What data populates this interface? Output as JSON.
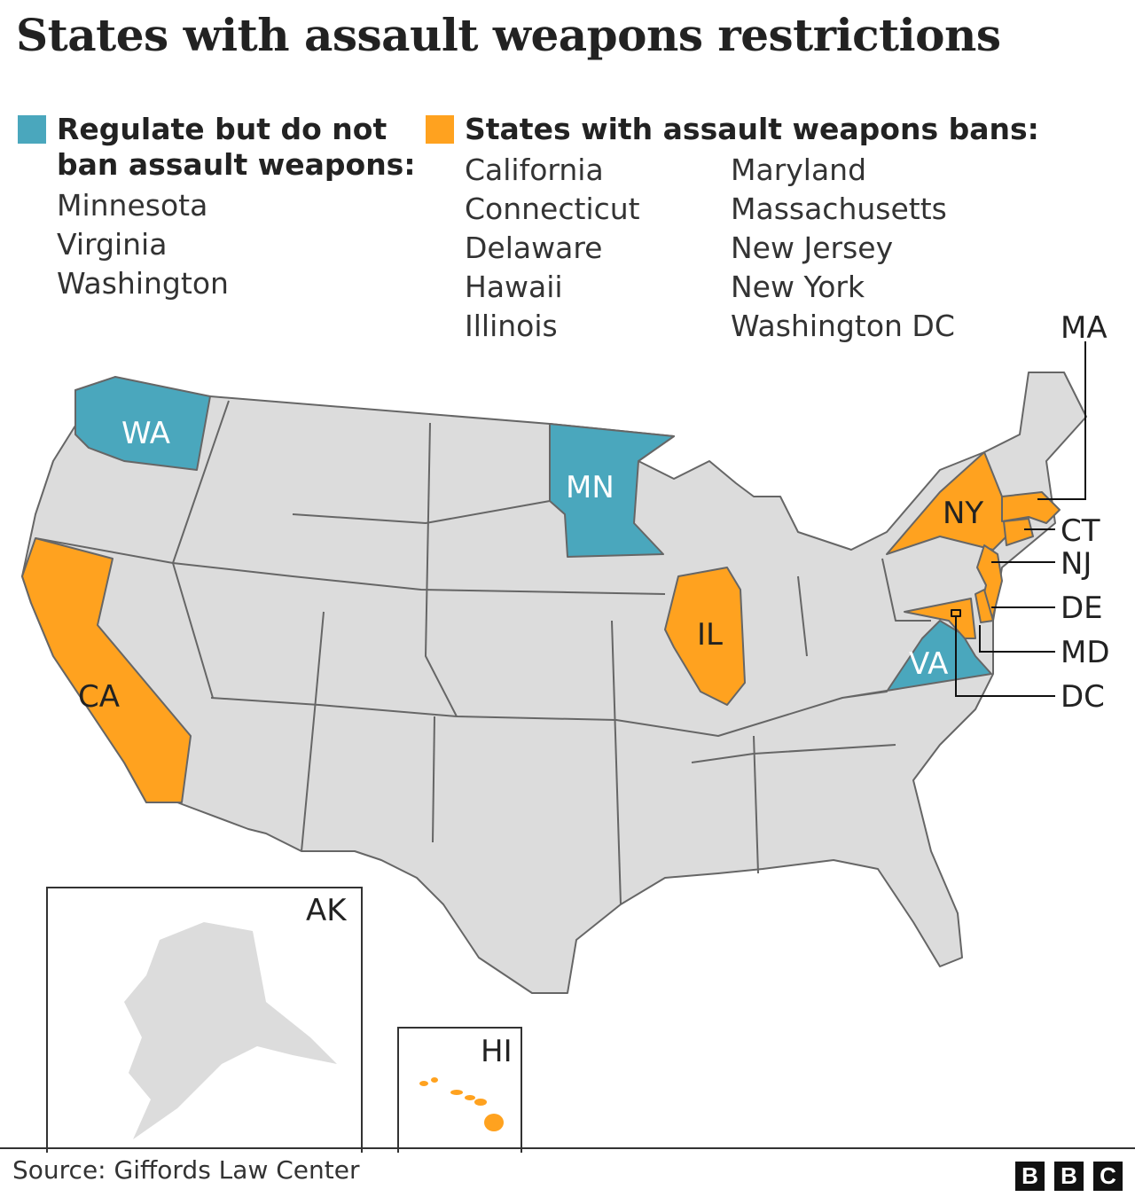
{
  "title": "States with assault weapons restrictions",
  "colors": {
    "regulate": "#4aa7bd",
    "ban": "#ffa21f",
    "other": "#dcdcdc",
    "border": "#666666"
  },
  "legend": {
    "regulate": {
      "label": "Regulate but do not ban assault weapons:",
      "label_line1": "Regulate but do not",
      "label_line2": "ban assault weapons:",
      "states": [
        "Minnesota",
        "Virginia",
        "Washington"
      ]
    },
    "ban": {
      "label": "States with assault weapons bans:",
      "states_col1": [
        "California",
        "Connecticut",
        "Delaware",
        "Hawaii",
        "Illinois"
      ],
      "states_col2": [
        "Maryland",
        "Massachusetts",
        "New Jersey",
        "New York",
        "Washington DC"
      ]
    }
  },
  "map_labels": {
    "WA": "WA",
    "MN": "MN",
    "CA": "CA",
    "IL": "IL",
    "NY": "NY",
    "VA": "VA",
    "MA": "MA",
    "CT": "CT",
    "NJ": "NJ",
    "DE": "DE",
    "MD": "MD",
    "DC": "DC",
    "AK": "AK",
    "HI": "HI"
  },
  "source": "Source: Giffords Law Center",
  "logo": [
    "B",
    "B",
    "C"
  ]
}
